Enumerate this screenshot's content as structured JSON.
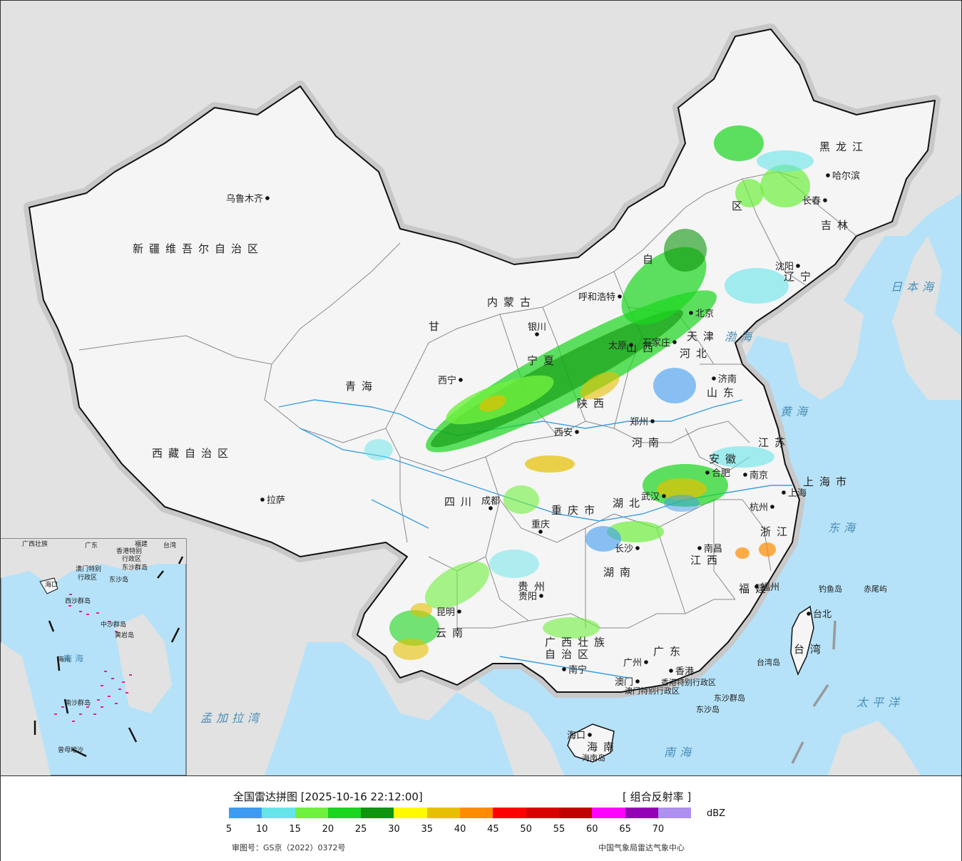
{
  "colors": {
    "sea": "#b5e2f8",
    "foreign_land": "#e2e2e2",
    "china_land": "#f4f4f4",
    "border": "#111111",
    "province_border": "#8a8a8a",
    "river": "#3aa0e0",
    "island_pink": "#e0209a"
  },
  "provinces": [
    {
      "id": "xinjiang",
      "label": "新疆维吾尔自治区"
    },
    {
      "id": "xizang",
      "label": "西藏自治区"
    },
    {
      "id": "qinghai",
      "label": "青海"
    },
    {
      "id": "gansu",
      "label": "甘"
    },
    {
      "id": "sichuan",
      "label": "四川"
    },
    {
      "id": "yunnan",
      "label": "云南"
    },
    {
      "id": "guizhou",
      "label": "贵州"
    },
    {
      "id": "guangxi1",
      "label": "广西壮族"
    },
    {
      "id": "guangxi2",
      "label": "自治区"
    },
    {
      "id": "guangdong",
      "label": "广东"
    },
    {
      "id": "hainan",
      "label": "海南"
    },
    {
      "id": "hunan",
      "label": "湖南"
    },
    {
      "id": "hubei",
      "label": "湖北"
    },
    {
      "id": "jiangxi",
      "label": "江西"
    },
    {
      "id": "fujian",
      "label": "福建"
    },
    {
      "id": "zhejiang",
      "label": "浙江"
    },
    {
      "id": "jiangsu",
      "label": "江苏"
    },
    {
      "id": "anhui",
      "label": "安徽"
    },
    {
      "id": "henan",
      "label": "河南"
    },
    {
      "id": "shandong",
      "label": "山东"
    },
    {
      "id": "shanxi",
      "label": "山西"
    },
    {
      "id": "shaanxi",
      "label": "陕西"
    },
    {
      "id": "ningxia",
      "label": "宁夏"
    },
    {
      "id": "neimenggu1",
      "label": "内蒙古"
    },
    {
      "id": "neimenggu2",
      "label": "自"
    },
    {
      "id": "neimenggu3",
      "label": "区"
    },
    {
      "id": "hebei",
      "label": "河北"
    },
    {
      "id": "liaoning",
      "label": "辽宁"
    },
    {
      "id": "jilin",
      "label": "吉林"
    },
    {
      "id": "heilongjiang",
      "label": "黑龙江"
    },
    {
      "id": "chongqing",
      "label": "重庆市"
    },
    {
      "id": "shanghai",
      "label": "上海市"
    },
    {
      "id": "taiwan",
      "label": "台湾"
    },
    {
      "id": "tianjin",
      "label": "天津"
    }
  ],
  "cities": [
    {
      "name": "乌鲁木齐"
    },
    {
      "name": "拉萨"
    },
    {
      "name": "西宁"
    },
    {
      "name": "银川"
    },
    {
      "name": "呼和浩特"
    },
    {
      "name": "西安"
    },
    {
      "name": "成都"
    },
    {
      "name": "重庆"
    },
    {
      "name": "贵阳"
    },
    {
      "name": "昆明"
    },
    {
      "name": "南宁"
    },
    {
      "name": "广州"
    },
    {
      "name": "香港"
    },
    {
      "name": "澳门"
    },
    {
      "name": "海口"
    },
    {
      "name": "长沙"
    },
    {
      "name": "武汉"
    },
    {
      "name": "南昌"
    },
    {
      "name": "福州"
    },
    {
      "name": "台北"
    },
    {
      "name": "杭州"
    },
    {
      "name": "上海"
    },
    {
      "name": "南京"
    },
    {
      "name": "合肥"
    },
    {
      "name": "郑州"
    },
    {
      "name": "济南"
    },
    {
      "name": "石家庄"
    },
    {
      "name": "太原"
    },
    {
      "name": "沈阳"
    },
    {
      "name": "长春"
    },
    {
      "name": "哈尔滨"
    },
    {
      "name": "北京"
    }
  ],
  "seas": [
    {
      "name": "日本海"
    },
    {
      "name": "渤海"
    },
    {
      "name": "黄海"
    },
    {
      "name": "东海"
    },
    {
      "name": "太平洋"
    },
    {
      "name": "南海"
    },
    {
      "name": "孟加拉湾"
    }
  ],
  "islands": [
    {
      "name": "钓鱼岛"
    },
    {
      "name": "赤尾屿"
    },
    {
      "name": "台湾岛"
    },
    {
      "name": "东沙群岛"
    },
    {
      "name": "东沙岛"
    },
    {
      "name": "海南岛"
    },
    {
      "name": "香港特别行政区"
    },
    {
      "name": "澳门特别行政区"
    }
  ],
  "inset": {
    "labels": [
      "广西壮族",
      "广东",
      "福建",
      "台湾",
      "海口",
      "香港特别",
      "行政区",
      "澳门特别",
      "行政区",
      "东沙群岛",
      "东沙岛",
      "西沙群岛",
      "中沙群岛",
      "黄岩岛",
      "南沙群岛",
      "曾母暗沙",
      "海南"
    ],
    "sea": "南海"
  },
  "legend": {
    "title": "全国雷达拼图 [2025-10-16 22:12:00]",
    "product": "[ 组合反射率 ]",
    "unit": "dBZ",
    "colors": [
      "#3d9bf1",
      "#65e5ea",
      "#6ff03e",
      "#1bd51e",
      "#0e940e",
      "#fffa00",
      "#e6c000",
      "#ff8b00",
      "#ff0000",
      "#d90000",
      "#c10000",
      "#ff00ff",
      "#9300b6",
      "#ae91ee"
    ],
    "ticks": [
      "5",
      "10",
      "15",
      "20",
      "25",
      "30",
      "35",
      "40",
      "45",
      "50",
      "55",
      "60",
      "65",
      "70"
    ],
    "approval": "审图号：GS京（2022）0372号",
    "agency": "中国气象局雷达气象中心"
  }
}
